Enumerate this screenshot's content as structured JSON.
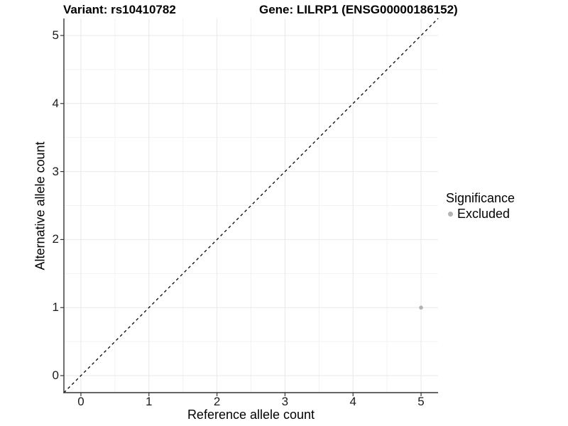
{
  "titles": {
    "variant": "Variant: rs10410782",
    "gene": "Gene: LILRP1 (ENSG00000186152)"
  },
  "chart_data": {
    "type": "scatter",
    "title_left": "Variant: rs10410782",
    "title_right": "Gene: LILRP1 (ENSG00000186152)",
    "xlabel": "Reference allele count",
    "ylabel": "Alternative allele count",
    "xlim": [
      -0.25,
      5.25
    ],
    "ylim": [
      -0.25,
      5.25
    ],
    "x_ticks": [
      0,
      1,
      2,
      3,
      4,
      5
    ],
    "y_ticks": [
      0,
      1,
      2,
      3,
      4,
      5
    ],
    "x_minor_ticks": [
      0.5,
      1.5,
      2.5,
      3.5,
      4.5
    ],
    "y_minor_ticks": [
      0.5,
      1.5,
      2.5,
      3.5,
      4.5
    ],
    "grid": true,
    "identity_line": {
      "style": "dashed",
      "color": "#000000",
      "from": -0.25,
      "to": 5.25
    },
    "points": [
      {
        "x": 5,
        "y": 1,
        "series": "Excluded",
        "color": "#b3b3b3"
      }
    ],
    "legend": {
      "title": "Significance",
      "position": "right",
      "items": [
        {
          "label": "Excluded",
          "color": "#b3b3b3"
        }
      ]
    },
    "colors": {
      "grid_major": "#e8e8e8",
      "grid_minor": "#f2f2f2",
      "axis": "#333333",
      "tick_text": "#1a1a1a",
      "background": "#ffffff"
    }
  }
}
